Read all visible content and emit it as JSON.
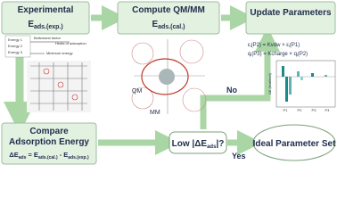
{
  "experimental": {
    "title": "Experimental",
    "energy": {
      "main": "E",
      "sub": "ads.(exp.)"
    },
    "energies": [
      "Energy 1",
      "Energy 2",
      "Energy 3"
    ],
    "boltzmann": "Boltzmann factor",
    "heats": "Heats of adsorption",
    "minimum": "Minimum energy"
  },
  "compute": {
    "title": "Compute QM/MM",
    "energy": {
      "main": "E",
      "sub": "ads.(cal.)"
    },
    "qm": "QM",
    "mm": "MM"
  },
  "update": {
    "title": "Update Parameters",
    "eq1": [
      "ε",
      "i",
      "(P2) = Kvdw × ε",
      "i",
      "(P1)"
    ],
    "eq2": [
      "q",
      "i",
      "(P3) = Kcharge × q",
      "i",
      "(P2)"
    ],
    "axis_label": "ΔE (kcal/mol)",
    "params": [
      "P1",
      "P2",
      "P3",
      "P4"
    ]
  },
  "compare": {
    "title": [
      "Compare",
      "Adsorption Energy"
    ],
    "formula": [
      "ΔE",
      "ads",
      " = E",
      "ads.(cal.)",
      " - E",
      "ads.(exp.)"
    ]
  },
  "decision": {
    "main": "Low |ΔE",
    "sub": "ads",
    "end": "|?"
  },
  "no": "No",
  "yes": "Yes",
  "ideal": "Ideal Parameter Set"
}
